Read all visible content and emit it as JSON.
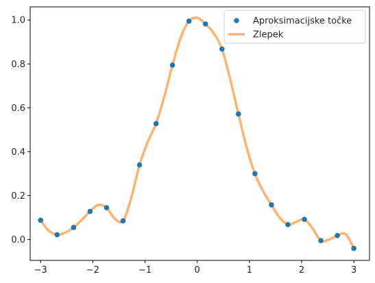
{
  "chart_data": {
    "type": "line",
    "title": "",
    "xlabel": "",
    "ylabel": "",
    "xlim": [
      -3.2,
      3.3
    ],
    "ylim": [
      -0.095,
      1.06
    ],
    "grid": false,
    "legend_position": "top-right",
    "xticks": [
      -3,
      -2,
      -1,
      0,
      1,
      2,
      3
    ],
    "yticks": [
      0.0,
      0.2,
      0.4,
      0.6,
      0.8,
      1.0
    ],
    "xtick_labels": [
      "−3",
      "−2",
      "−1",
      "0",
      "1",
      "2",
      "3"
    ],
    "ytick_labels": [
      "0.0",
      "0.2",
      "0.4",
      "0.6",
      "0.8",
      "1.0"
    ],
    "series": [
      {
        "name": "Aproksimacijske točke",
        "style": "markers",
        "color": "#1f77b4",
        "x": [
          -3.0,
          -2.684,
          -2.368,
          -2.053,
          -1.737,
          -1.421,
          -1.105,
          -0.789,
          -0.474,
          -0.158,
          0.158,
          0.474,
          0.789,
          1.105,
          1.421,
          1.737,
          2.053,
          2.368,
          2.684,
          3.0
        ],
        "y": [
          0.088,
          0.022,
          0.055,
          0.128,
          0.145,
          0.085,
          0.34,
          0.528,
          0.795,
          0.995,
          0.982,
          0.868,
          0.572,
          0.3,
          0.158,
          0.068,
          0.092,
          -0.005,
          0.018,
          -0.04
        ]
      },
      {
        "name": "Zlepek",
        "style": "line",
        "color": "#ffb16f",
        "x": [
          -3.0,
          -2.842,
          -2.684,
          -2.526,
          -2.368,
          -2.211,
          -2.053,
          -1.895,
          -1.737,
          -1.579,
          -1.421,
          -1.263,
          -1.105,
          -0.947,
          -0.789,
          -0.632,
          -0.474,
          -0.316,
          -0.158,
          0.0,
          0.158,
          0.316,
          0.474,
          0.632,
          0.789,
          0.947,
          1.105,
          1.263,
          1.421,
          1.579,
          1.737,
          1.895,
          2.053,
          2.211,
          2.368,
          2.526,
          2.684,
          2.842,
          3.0
        ],
        "y": [
          0.088,
          0.04,
          0.022,
          0.032,
          0.055,
          0.09,
          0.128,
          0.158,
          0.145,
          0.095,
          0.085,
          0.19,
          0.34,
          0.445,
          0.528,
          0.65,
          0.795,
          0.92,
          0.995,
          1.01,
          0.982,
          0.94,
          0.868,
          0.73,
          0.572,
          0.42,
          0.3,
          0.22,
          0.158,
          0.1,
          0.068,
          0.08,
          0.092,
          0.05,
          -0.005,
          0.0,
          0.018,
          0.025,
          -0.04
        ]
      }
    ]
  }
}
